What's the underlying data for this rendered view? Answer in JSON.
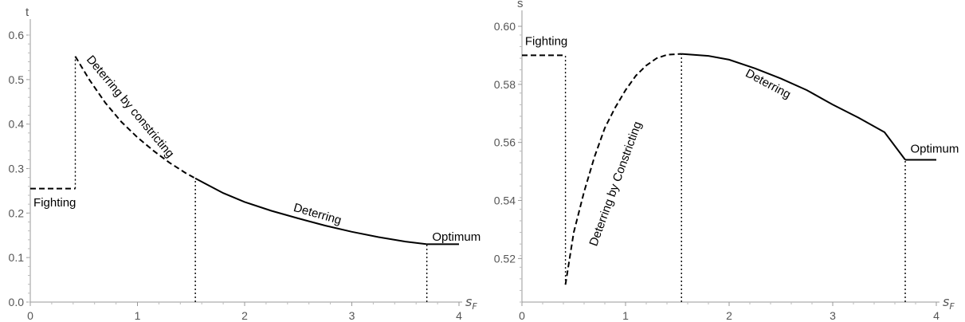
{
  "chart_data": [
    {
      "type": "line",
      "xlabel": "s",
      "xlabel_sub": "F",
      "ylabel": "t",
      "xlim": [
        0,
        4
      ],
      "ylim": [
        0,
        0.6
      ],
      "xticks": [
        "0",
        "1",
        "2",
        "3",
        "4"
      ],
      "yticks": [
        "0.0",
        "0.1",
        "0.2",
        "0.3",
        "0.4",
        "0.5",
        "0.6"
      ],
      "series": [
        {
          "style": "dashed",
          "x": [
            0,
            0.42
          ],
          "y": [
            0.255,
            0.255
          ]
        },
        {
          "style": "dashed",
          "x": [
            0.42,
            0.55,
            0.7,
            0.85,
            1.0,
            1.15,
            1.3,
            1.45,
            1.54
          ],
          "y": [
            0.552,
            0.5,
            0.448,
            0.405,
            0.37,
            0.34,
            0.313,
            0.29,
            0.278
          ]
        },
        {
          "style": "solid",
          "x": [
            1.54,
            1.8,
            2.0,
            2.25,
            2.5,
            2.75,
            3.0,
            3.25,
            3.5,
            3.7
          ],
          "y": [
            0.278,
            0.245,
            0.225,
            0.205,
            0.188,
            0.172,
            0.158,
            0.146,
            0.136,
            0.13
          ]
        },
        {
          "style": "solid",
          "x": [
            3.7,
            4.0
          ],
          "y": [
            0.13,
            0.13
          ]
        }
      ],
      "vlines": [
        {
          "x": 0.42,
          "y0": 0.255,
          "y1": 0.552
        },
        {
          "x": 1.54,
          "y0": 0,
          "y1": 0.278
        },
        {
          "x": 3.7,
          "y0": 0,
          "y1": 0.13
        }
      ],
      "annotations": [
        {
          "text": "Fighting",
          "x": 0.03,
          "y": 0.215,
          "angle": 0
        },
        {
          "text": "Deterring by constricting",
          "x": 0.52,
          "y": 0.545,
          "angle": 50
        },
        {
          "text": "Deterring",
          "x": 2.45,
          "y": 0.205,
          "angle": 16
        },
        {
          "text": "Optimum",
          "x": 3.75,
          "y": 0.138,
          "angle": 0
        }
      ]
    },
    {
      "type": "line",
      "xlabel": "s",
      "xlabel_sub": "F",
      "ylabel": "s",
      "xlim": [
        0,
        4
      ],
      "ylim": [
        0.505,
        0.6
      ],
      "xticks": [
        "0",
        "1",
        "2",
        "3",
        "4"
      ],
      "yticks": [
        "0.52",
        "0.54",
        "0.56",
        "0.58",
        "0.60"
      ],
      "ytick_values": [
        0.52,
        0.54,
        0.56,
        0.58,
        0.6
      ],
      "series": [
        {
          "style": "dashed",
          "x": [
            0,
            0.42
          ],
          "y": [
            0.59,
            0.59
          ]
        },
        {
          "style": "dashed",
          "x": [
            0.42,
            0.5,
            0.6,
            0.7,
            0.8,
            0.9,
            1.0,
            1.1,
            1.2,
            1.3,
            1.4,
            1.54
          ],
          "y": [
            0.511,
            0.529,
            0.543,
            0.555,
            0.565,
            0.572,
            0.578,
            0.583,
            0.5865,
            0.589,
            0.5902,
            0.5905
          ]
        },
        {
          "style": "solid",
          "x": [
            1.54,
            1.8,
            2.0,
            2.25,
            2.5,
            2.75,
            3.0,
            3.25,
            3.5,
            3.7
          ],
          "y": [
            0.5905,
            0.5898,
            0.5885,
            0.5855,
            0.582,
            0.578,
            0.573,
            0.5685,
            0.5635,
            0.554
          ]
        },
        {
          "style": "solid",
          "x": [
            3.7,
            4.0
          ],
          "y": [
            0.554,
            0.554
          ]
        }
      ],
      "vlines": [
        {
          "x": 0.42,
          "y0": 0.511,
          "y1": 0.59
        },
        {
          "x": 1.54,
          "y0": 0.505,
          "y1": 0.5905
        },
        {
          "x": 3.7,
          "y0": 0.505,
          "y1": 0.554
        }
      ],
      "annotations": [
        {
          "text": "Fighting",
          "x": 0.03,
          "y": 0.5935,
          "angle": 0
        },
        {
          "text": "Deterring by Constricting",
          "x": 0.72,
          "y": 0.524,
          "angle": -70
        },
        {
          "text": "Deterring",
          "x": 2.15,
          "y": 0.583,
          "angle": 28
        },
        {
          "text": "Optimum",
          "x": 3.75,
          "y": 0.5565,
          "angle": 0
        }
      ]
    }
  ]
}
